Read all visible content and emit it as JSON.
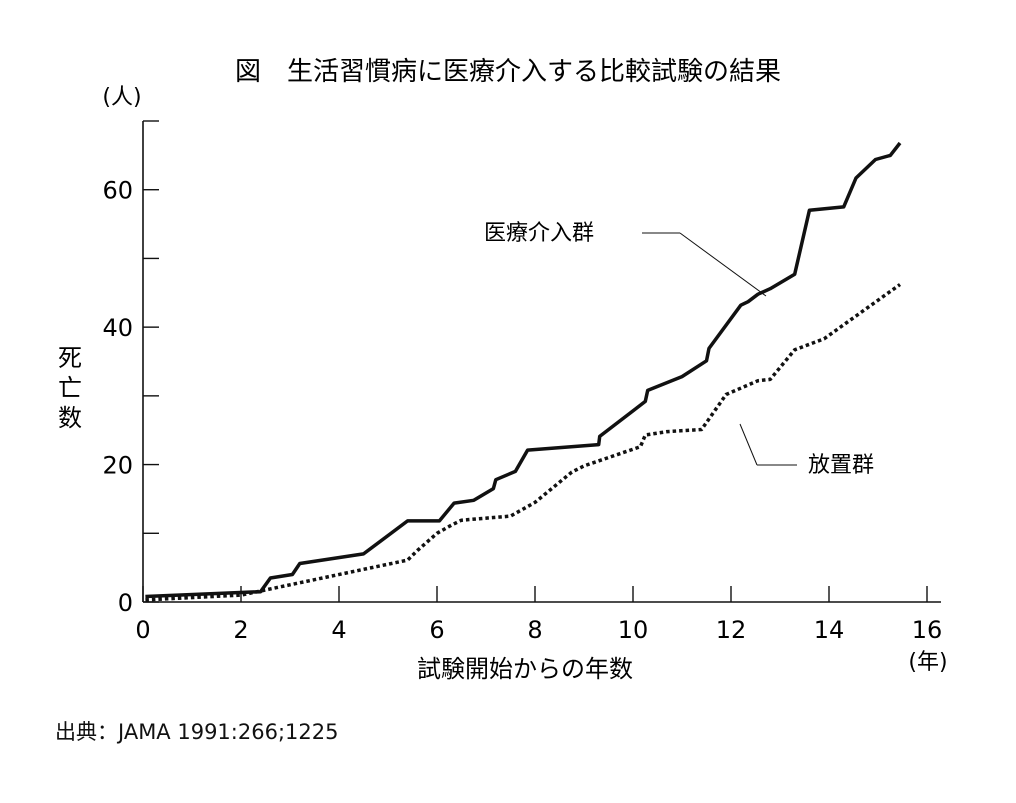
{
  "chart_data": {
    "type": "line",
    "title": "図　生活習慣病に医療介入する比較試験の結果",
    "xlabel": "試験開始からの年数",
    "x_unit": "(年)",
    "ylabel": "死亡数",
    "y_unit": "(人)",
    "xlim": [
      0,
      16
    ],
    "ylim": [
      0,
      70
    ],
    "x_ticks": [
      0,
      2,
      4,
      6,
      8,
      10,
      12,
      14,
      16
    ],
    "y_ticks": [
      0,
      20,
      40,
      60
    ],
    "grid": false,
    "legend": "inline labels",
    "series": [
      {
        "name": "医療介入群",
        "style": "solid",
        "x": [
          0.05,
          2.4,
          2.6,
          3.05,
          3.2,
          4.5,
          5.4,
          6.05,
          6.35,
          6.75,
          7.15,
          7.2,
          7.6,
          7.85,
          9.3,
          9.32,
          10.25,
          10.3,
          11.0,
          11.5,
          11.55,
          12.2,
          12.35,
          12.55,
          12.8,
          13.3,
          13.6,
          14.3,
          14.55,
          14.95,
          15.25,
          15.45
        ],
        "y": [
          0.8,
          1.5,
          3.5,
          4.0,
          5.6,
          7.0,
          11.8,
          11.8,
          14.4,
          14.8,
          16.5,
          17.8,
          19.0,
          22.1,
          22.9,
          24.1,
          29.2,
          30.8,
          32.8,
          35.1,
          36.9,
          43.2,
          43.7,
          44.8,
          45.6,
          47.7,
          57.0,
          57.5,
          61.7,
          64.4,
          65.0,
          66.8
        ]
      },
      {
        "name": "放置群",
        "style": "dotted",
        "x": [
          0.05,
          2.0,
          5.4,
          5.6,
          6.0,
          6.3,
          6.5,
          7.5,
          8.0,
          8.75,
          9.0,
          10.15,
          10.25,
          10.7,
          11.4,
          11.9,
          12.55,
          12.8,
          13.3,
          13.9,
          15.45
        ],
        "y": [
          0.3,
          1.0,
          6.1,
          7.5,
          10.0,
          11.2,
          11.9,
          12.5,
          14.5,
          18.9,
          19.8,
          22.6,
          24.3,
          24.8,
          25.1,
          30.2,
          32.2,
          32.4,
          36.7,
          38.3,
          46.2
        ]
      }
    ]
  },
  "source": "出典：JAMA 1991:266;1225"
}
